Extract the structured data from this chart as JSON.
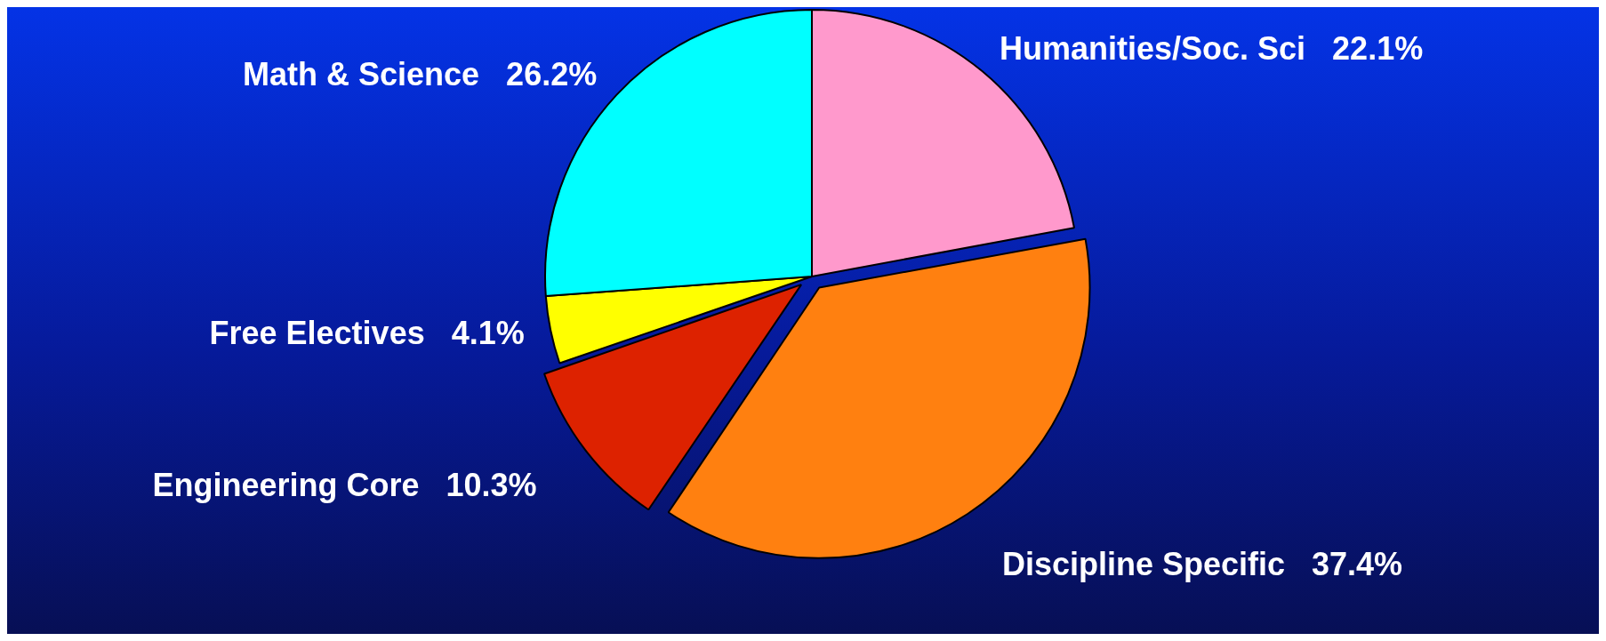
{
  "chart_data": {
    "type": "pie",
    "categories": [
      "Humanities/Soc. Sci",
      "Discipline Specific",
      "Engineering Core",
      "Free Electives",
      "Math & Science"
    ],
    "values": [
      22.1,
      37.4,
      10.3,
      4.1,
      26.2
    ],
    "value_labels": [
      "22.1%",
      "37.4%",
      "10.3%",
      "4.1%",
      "26.2%"
    ],
    "colors": [
      "#ff99cc",
      "#ff8010",
      "#dd2200",
      "#ffff00",
      "#00ffff"
    ],
    "legend": false
  }
}
